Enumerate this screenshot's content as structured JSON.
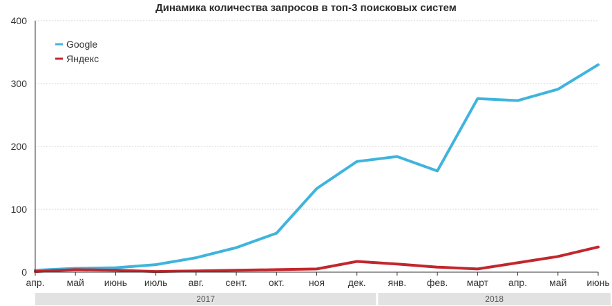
{
  "chart_data": {
    "type": "line",
    "title": "Динамика количества запросов в топ-3 поисковых систем",
    "categories": [
      "апр.",
      "май",
      "июнь",
      "июль",
      "авг.",
      "сент.",
      "окт.",
      "ноя",
      "дек.",
      "янв.",
      "фев.",
      "март",
      "апр.",
      "май",
      "июнь"
    ],
    "year_groups": [
      {
        "label": "2017",
        "from": 0,
        "to": 8
      },
      {
        "label": "2018",
        "from": 9,
        "to": 14
      }
    ],
    "ylim": [
      0,
      400
    ],
    "yticks": [
      0,
      100,
      200,
      300,
      400
    ],
    "grid": true,
    "legend_position": "top-left",
    "series": [
      {
        "name": "Google",
        "color": "#3fb4dc",
        "values": [
          3,
          6,
          7,
          12,
          23,
          39,
          62,
          133,
          176,
          184,
          161,
          276,
          273,
          291,
          330
        ]
      },
      {
        "name": "Яндекс",
        "color": "#c1272d",
        "values": [
          1,
          4,
          3,
          1,
          2,
          3,
          4,
          5,
          17,
          13,
          8,
          5,
          15,
          25,
          40
        ]
      }
    ]
  }
}
